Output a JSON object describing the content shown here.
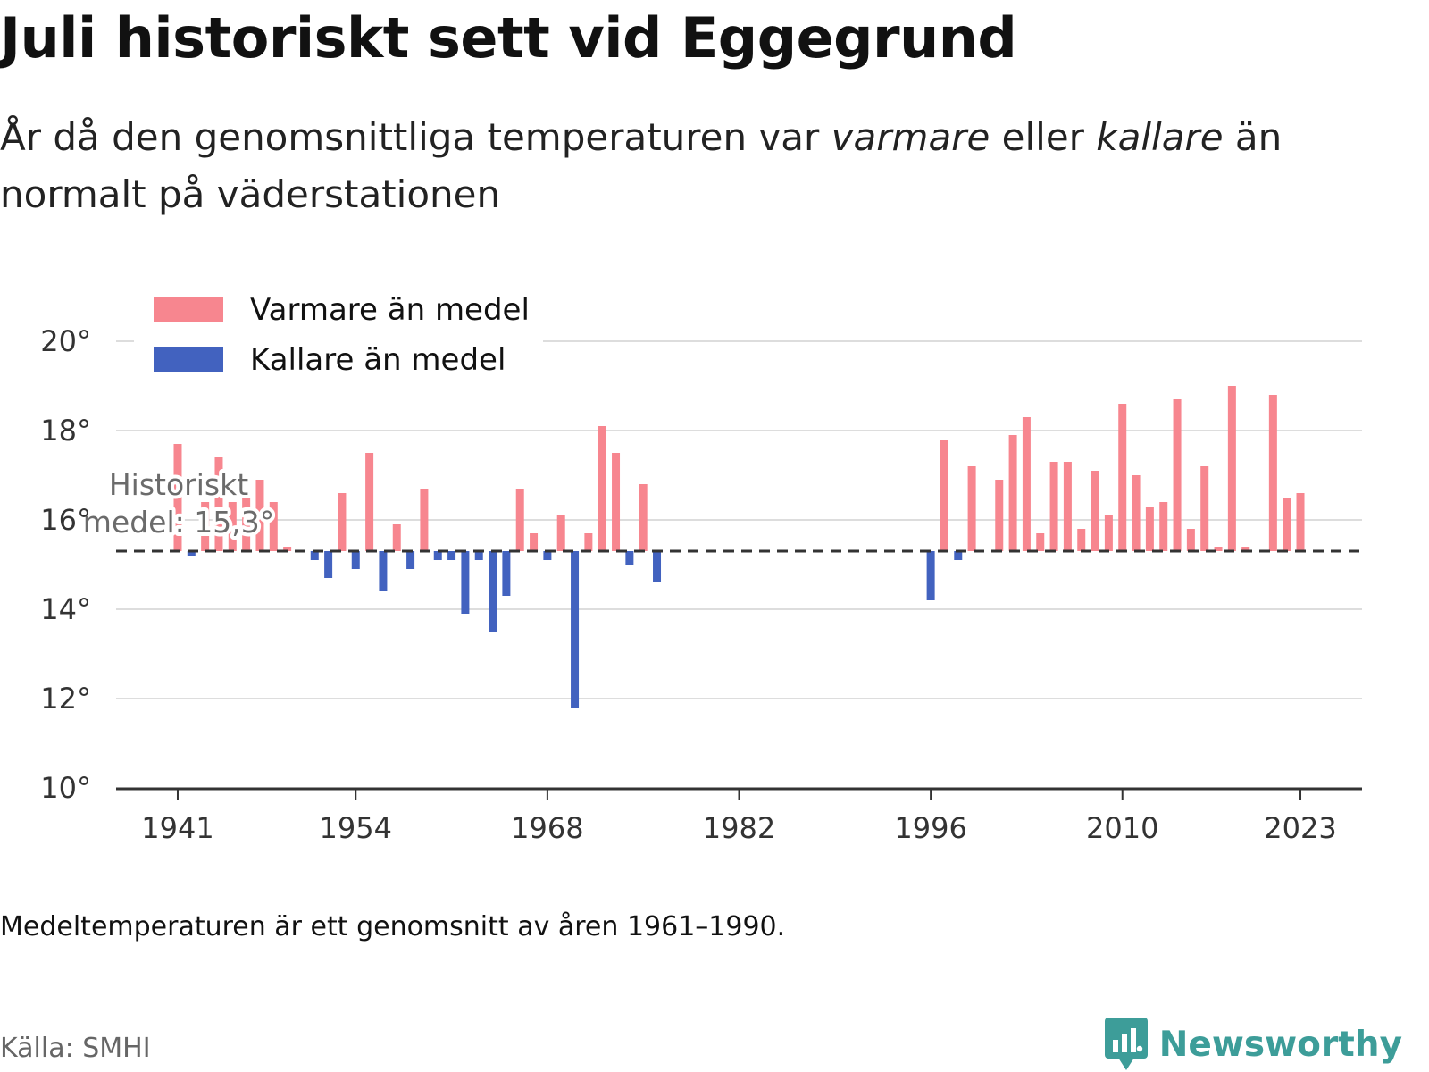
{
  "header": {
    "title": "Juli historiskt sett vid Eggegrund",
    "subtitle_before": "År då den genomsnittliga temperaturen var ",
    "subtitle_warm": "varmare",
    "subtitle_mid": " eller ",
    "subtitle_cold": "kallare",
    "subtitle_after": " än normalt på väderstationen"
  },
  "chart_data": {
    "type": "bar",
    "baseline": 15.3,
    "ylim": [
      10,
      20
    ],
    "yticks": [
      10,
      12,
      14,
      16,
      18,
      20
    ],
    "ytick_suffix": "°",
    "xticks": [
      1941,
      1954,
      1968,
      1982,
      1996,
      2010,
      2023
    ],
    "xlim": [
      1936.5,
      2027.5
    ],
    "grid": true,
    "legend_position": "top-left",
    "series": [
      {
        "name": "Varmare än medel",
        "color": "#f7868f"
      },
      {
        "name": "Kallare än medel",
        "color": "#4262bf"
      }
    ],
    "mean_label": [
      "Historiskt",
      "medel: 15,3°"
    ],
    "data": [
      {
        "x": 1941,
        "y": 17.7
      },
      {
        "x": 1942,
        "y": 15.2
      },
      {
        "x": 1943,
        "y": 16.4
      },
      {
        "x": 1944,
        "y": 17.4
      },
      {
        "x": 1945,
        "y": 16.4
      },
      {
        "x": 1946,
        "y": 16.5
      },
      {
        "x": 1947,
        "y": 16.9
      },
      {
        "x": 1948,
        "y": 16.4
      },
      {
        "x": 1949,
        "y": 15.4
      },
      {
        "x": 1951,
        "y": 15.1
      },
      {
        "x": 1952,
        "y": 14.7
      },
      {
        "x": 1953,
        "y": 16.6
      },
      {
        "x": 1954,
        "y": 14.9
      },
      {
        "x": 1955,
        "y": 17.5
      },
      {
        "x": 1956,
        "y": 14.4
      },
      {
        "x": 1957,
        "y": 15.9
      },
      {
        "x": 1958,
        "y": 14.9
      },
      {
        "x": 1959,
        "y": 16.7
      },
      {
        "x": 1960,
        "y": 15.1
      },
      {
        "x": 1961,
        "y": 15.1
      },
      {
        "x": 1962,
        "y": 13.9
      },
      {
        "x": 1963,
        "y": 15.1
      },
      {
        "x": 1964,
        "y": 13.5
      },
      {
        "x": 1965,
        "y": 14.3
      },
      {
        "x": 1966,
        "y": 16.7
      },
      {
        "x": 1967,
        "y": 15.7
      },
      {
        "x": 1968,
        "y": 15.1
      },
      {
        "x": 1969,
        "y": 16.1
      },
      {
        "x": 1970,
        "y": 11.8
      },
      {
        "x": 1971,
        "y": 15.7
      },
      {
        "x": 1972,
        "y": 18.1
      },
      {
        "x": 1973,
        "y": 17.5
      },
      {
        "x": 1974,
        "y": 15.0
      },
      {
        "x": 1975,
        "y": 16.8
      },
      {
        "x": 1976,
        "y": 14.6
      },
      {
        "x": 1996,
        "y": 14.2
      },
      {
        "x": 1997,
        "y": 17.8
      },
      {
        "x": 1998,
        "y": 15.1
      },
      {
        "x": 1999,
        "y": 17.2
      },
      {
        "x": 2001,
        "y": 16.9
      },
      {
        "x": 2002,
        "y": 17.9
      },
      {
        "x": 2003,
        "y": 18.3
      },
      {
        "x": 2004,
        "y": 15.7
      },
      {
        "x": 2005,
        "y": 17.3
      },
      {
        "x": 2006,
        "y": 17.3
      },
      {
        "x": 2007,
        "y": 15.8
      },
      {
        "x": 2008,
        "y": 17.1
      },
      {
        "x": 2009,
        "y": 16.1
      },
      {
        "x": 2010,
        "y": 18.6
      },
      {
        "x": 2011,
        "y": 17.0
      },
      {
        "x": 2012,
        "y": 16.3
      },
      {
        "x": 2013,
        "y": 16.4
      },
      {
        "x": 2014,
        "y": 18.7
      },
      {
        "x": 2015,
        "y": 15.8
      },
      {
        "x": 2016,
        "y": 17.2
      },
      {
        "x": 2017,
        "y": 15.4
      },
      {
        "x": 2018,
        "y": 19.0
      },
      {
        "x": 2019,
        "y": 15.4
      },
      {
        "x": 2021,
        "y": 18.8
      },
      {
        "x": 2022,
        "y": 16.5
      },
      {
        "x": 2023,
        "y": 16.6
      }
    ]
  },
  "footer": {
    "note": "Medeltemperaturen är ett genomsnitt av åren 1961–1990.",
    "source": "Källa: SMHI",
    "brand": "Newsworthy",
    "brand_color": "#3d9d99"
  }
}
